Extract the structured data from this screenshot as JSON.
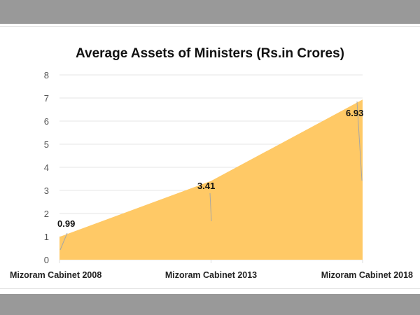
{
  "chart_data": {
    "type": "area",
    "title": "Average Assets of Ministers (Rs.in Crores)",
    "categories": [
      "Mizoram Cabinet 2008",
      "Mizoram Cabinet 2013",
      "Mizoram Cabinet 2018"
    ],
    "values": [
      0.99,
      3.41,
      6.93
    ],
    "data_labels": [
      "0.99",
      "3.41",
      "6.93"
    ],
    "ylim": [
      0,
      8
    ],
    "yticks": [
      "0",
      "1",
      "2",
      "3",
      "4",
      "5",
      "6",
      "7",
      "8"
    ],
    "grid": true,
    "legend": "none",
    "fill_color": "#FFC966"
  }
}
